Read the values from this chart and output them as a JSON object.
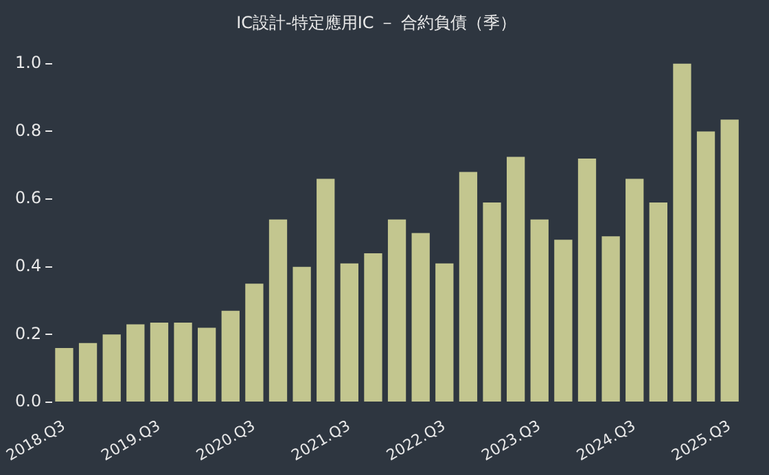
{
  "chart_data": {
    "type": "bar",
    "title": "IC設計-特定應用IC － 合約負債（季）",
    "categories": [
      "2018.Q3",
      null,
      null,
      null,
      "2019.Q3",
      null,
      null,
      null,
      "2020.Q3",
      null,
      null,
      null,
      "2021.Q3",
      null,
      null,
      null,
      "2022.Q3",
      null,
      null,
      null,
      "2023.Q3",
      null,
      null,
      null,
      "2024.Q3",
      null,
      null,
      null,
      "2025.Q3"
    ],
    "values": [
      0.16,
      0.175,
      0.2,
      0.23,
      0.235,
      0.235,
      0.22,
      0.27,
      0.35,
      0.54,
      0.4,
      0.66,
      0.41,
      0.44,
      0.54,
      0.5,
      0.41,
      0.68,
      0.59,
      0.725,
      0.54,
      0.48,
      0.72,
      0.49,
      0.66,
      0.59,
      1.0,
      0.8,
      0.835
    ],
    "color": "#c3c68f",
    "ylim": [
      0,
      1
    ],
    "yticks": [
      {
        "value": 0,
        "label": "0.0"
      },
      {
        "value": 0.2,
        "label": "0.2"
      },
      {
        "value": 0.4,
        "label": "0.4"
      },
      {
        "value": 0.6,
        "label": "0.6"
      },
      {
        "value": 0.8,
        "label": "0.8"
      },
      {
        "value": 1,
        "label": "1.0"
      }
    ],
    "grid": false
  }
}
